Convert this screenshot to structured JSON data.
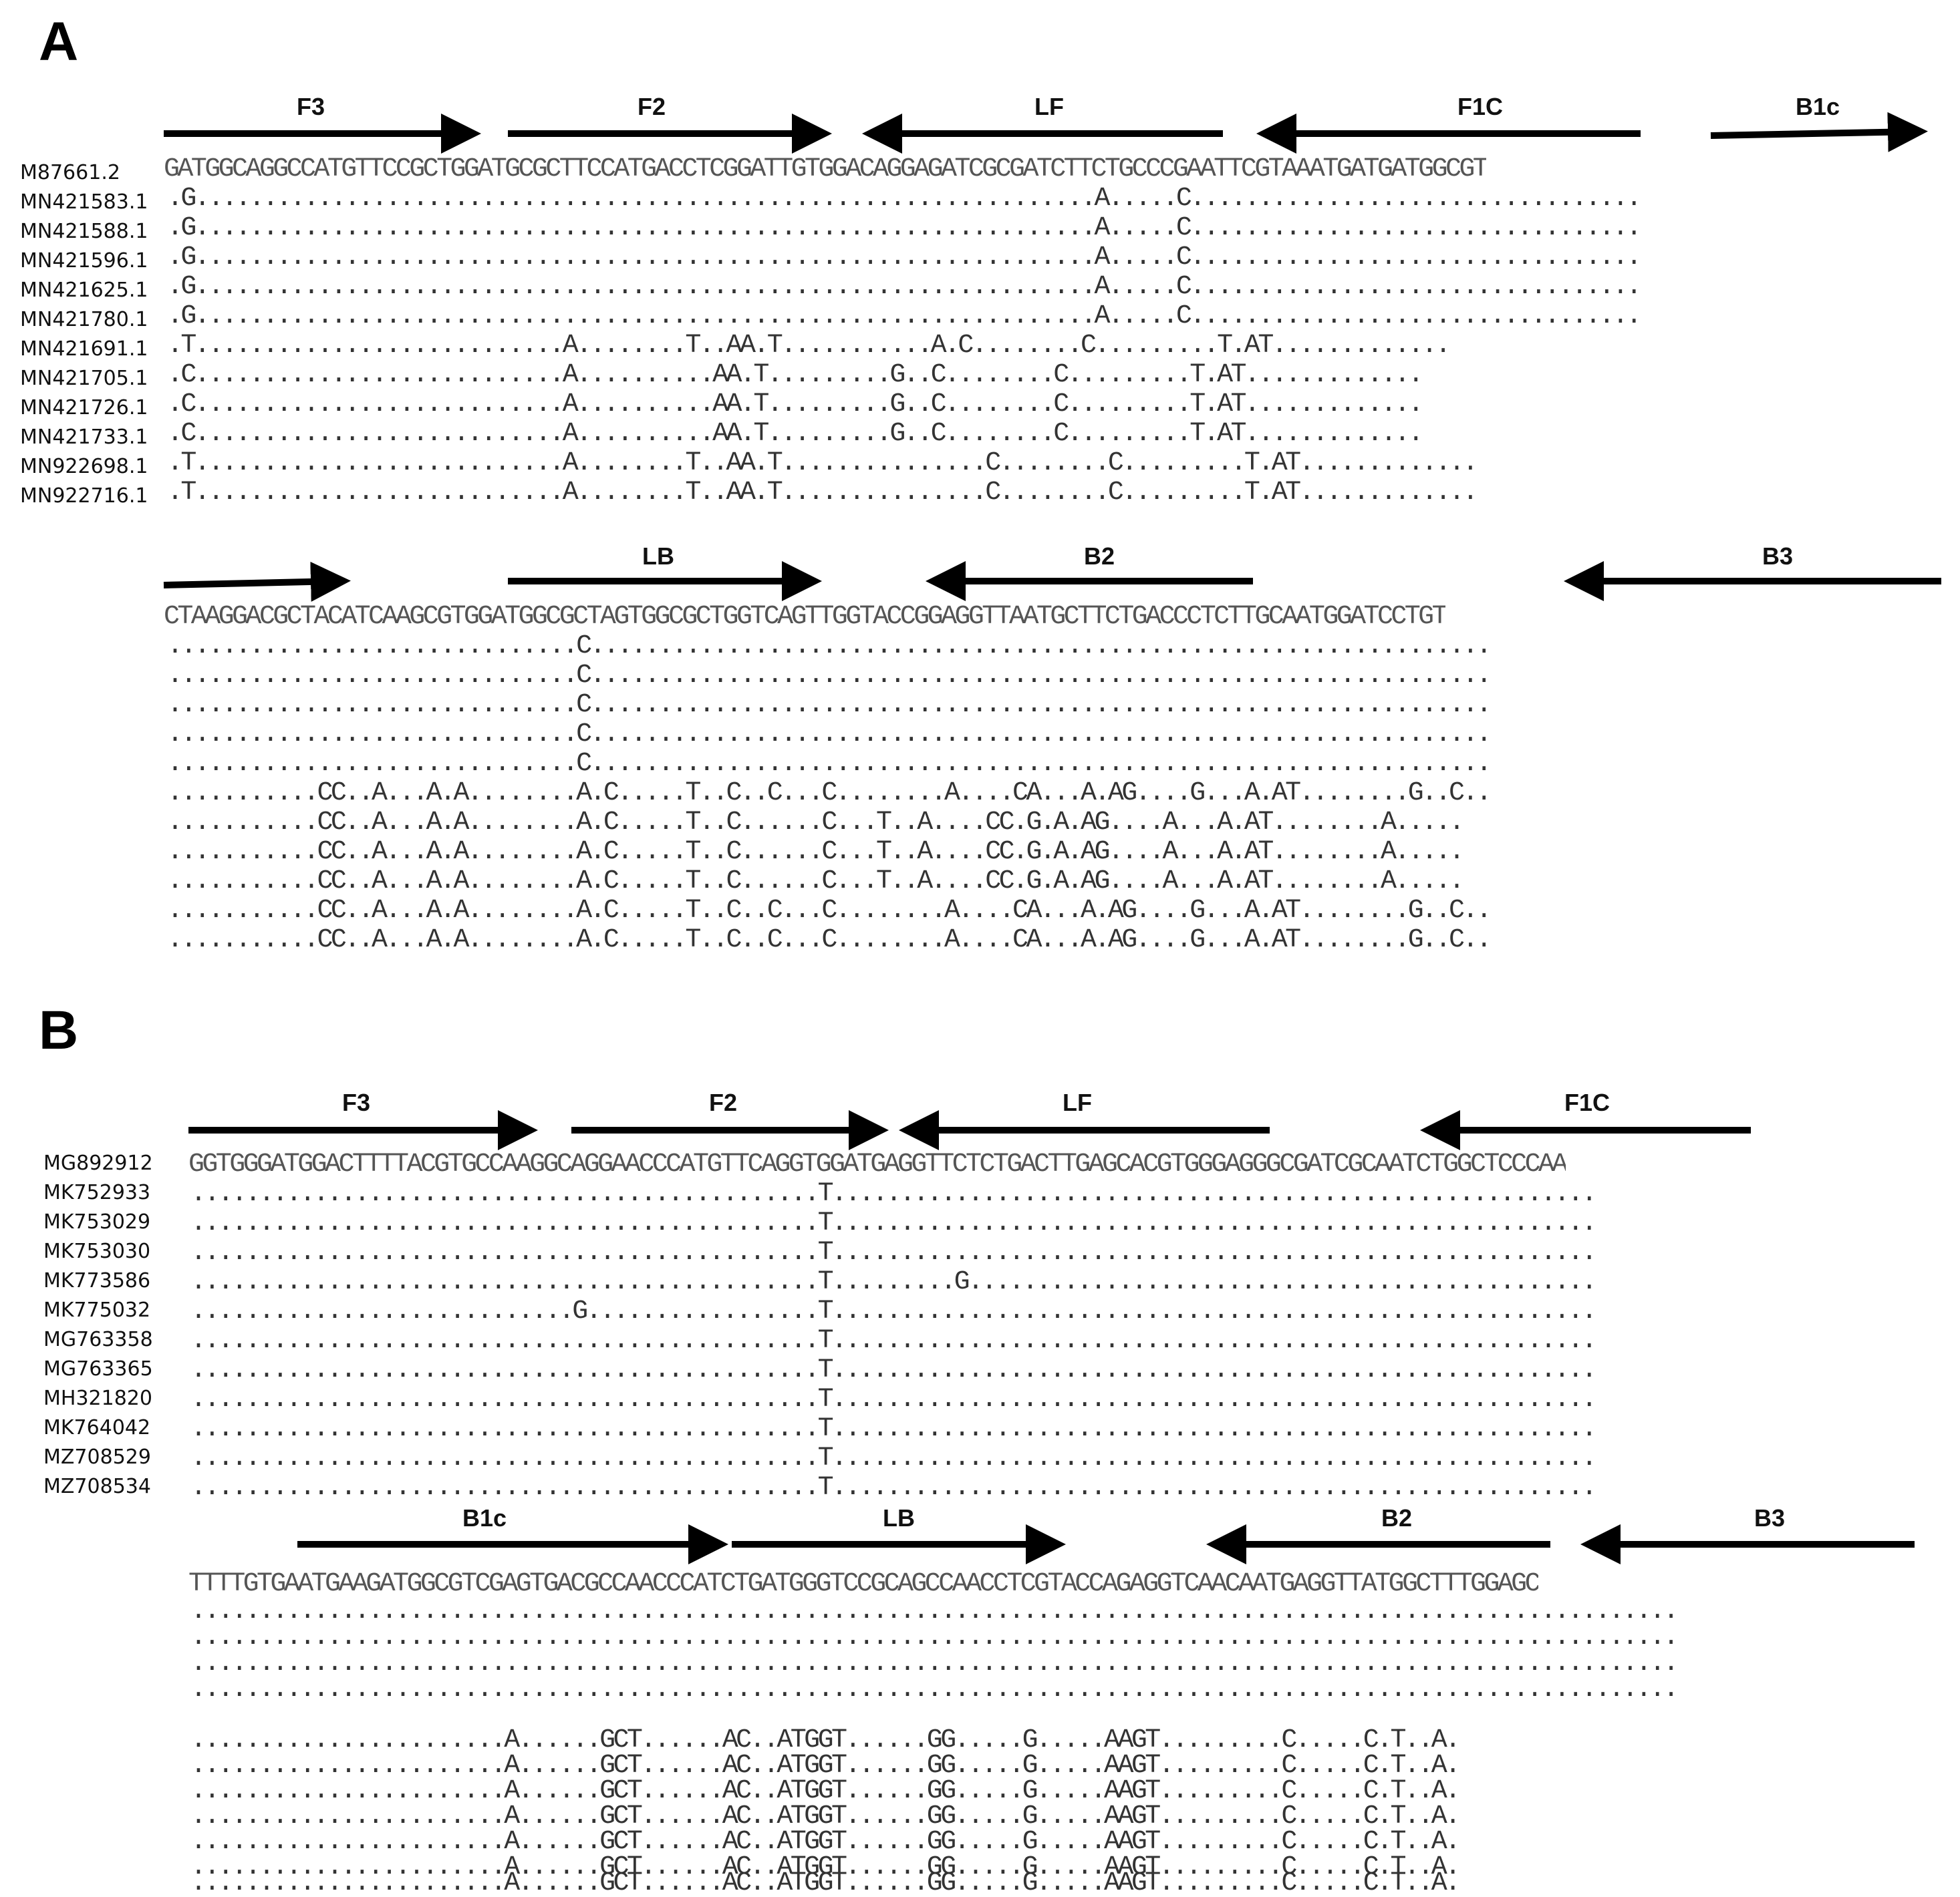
{
  "panel_a": {
    "letter": "A",
    "primer_labels": [
      "F3",
      "F2",
      "LF",
      "F1C",
      "B1c",
      "LB",
      "B2",
      "B3"
    ],
    "accessions": [
      "M87661.2",
      "MN421583.1",
      "MN421588.1",
      "MN421596.1",
      "MN421625.1",
      "MN421780.1",
      "MN421691.1",
      "MN421705.1",
      "MN421726.1",
      "MN421733.1",
      "MN922698.1",
      "MN922716.1"
    ],
    "ref_seq_1": "GATGGCAGGCCATGTTCCGCTGGATGCGCTTCCATGACCTCGGATTGTGGACAGGAGATCGCGATCTTCTGCCCGAATTCGTAAATGATGATGGCGT",
    "ref_seq_2": "CTAAGGACGCTACATCAAGCGTGGATGGCGCTAGTGGCGCTGGTCAGTTGGTACCGGAGGTTAATGCTTCTGACCCTCTTGCAATGGATCCTGT",
    "block1_rows": [
      ".G..................................................................A.....C.................................",
      ".G..................................................................A.....C.................................",
      ".G..................................................................A.....C.................................",
      ".G..................................................................A.....C.................................",
      ".G..................................................................A.....C.................................",
      ".T...........................A........T..AA.T...........A.C........C.........T.AT.............",
      ".C...........................A..........AA.T.........G..C........C.........T.AT.............",
      ".C...........................A..........AA.T.........G..C........C.........T.AT.............",
      ".C...........................A..........AA.T.........G..C........C.........T.AT.............",
      ".T...........................A........T..AA.T...............C........C.........T.AT.............",
      ".T...........................A........T..AA.T...............C........C.........T.AT............."
    ],
    "block2_rows": [
      "..............................C..................................................................",
      "..............................C..................................................................",
      "..............................C..................................................................",
      "..............................C..................................................................",
      "..............................C..................................................................",
      "...........CC..A...A.A........A.C.....T..C..C...C........A....CA...A.AG....G...A.AT........G..C..",
      "...........CC..A...A.A........A.C.....T..C......C...T..A....CC.G.A.AG....A...A.AT........A.....",
      "...........CC..A...A.A........A.C.....T..C......C...T..A....CC.G.A.AG....A...A.AT........A.....",
      "...........CC..A...A.A........A.C.....T..C......C...T..A....CC.G.A.AG....A...A.AT........A.....",
      "...........CC..A...A.A........A.C.....T..C..C...C........A....CA...A.AG....G...A.AT........G..C..",
      "...........CC..A...A.A........A.C.....T..C..C...C........A....CA...A.AG....G...A.AT........G..C.."
    ]
  },
  "panel_b": {
    "letter": "B",
    "primer_labels": [
      "F3",
      "F2",
      "LF",
      "F1C",
      "B1c",
      "LB",
      "B2",
      "B3"
    ],
    "accessions": [
      "MG892912",
      "MK752933",
      "MK753029",
      "MK753030",
      "MK773586",
      "MK775032",
      "MG763358",
      "MG763365",
      "MH321820",
      "MK764042",
      "MZ708529",
      "MZ708534"
    ],
    "ref_seq_1": "GGTGGGATGGACTTTTACGTGCCAAGGCAGGAACCCATGTTCAGGTGGATGAGGTTCTCTGACTTGAGCACGTGGGAGGGCGATCGCAATCTGGCTCCCAA",
    "ref_seq_2": "TTTTGTGAATGAAGATGGCGTCGAGTGACGCCAACCCATCTGATGGGTCCGCAGCCAACCTCGTACCAGAGGTCAACAATGAGGTTATGGCTTTGGAGC",
    "block1_rows": [
      "..............................................T........................................................",
      "..............................................T........................................................",
      "..............................................T........................................................",
      "..............................................T.........G..............................................",
      "............................G.................T........................................................",
      "..............................................T........................................................",
      "..............................................T........................................................",
      "..............................................T........................................................",
      "..............................................T........................................................",
      "..............................................T........................................................",
      "..............................................T........................................................"
    ],
    "block2_rows": [
      ".............................................................................................................",
      ".............................................................................................................",
      ".............................................................................................................",
      ".............................................................................................................",
      ".......................A......GCT......AC..ATGGT......GG.....G.....AAGT.........C.....C.T..A.",
      ".......................A......GCT......AC..ATGGT......GG.....G.....AAGT.........C.....C.T..A.",
      ".......................A......GCT......AC..ATGGT......GG.....G.....AAGT.........C.....C.T..A.",
      ".......................A......GCT......AC..ATGGT......GG.....G.....AAGT.........C.....C.T..A.",
      ".......................A......GCT......AC..ATGGT......GG.....G.....AAGT.........C.....C.T..A.",
      ".......................A......GCT......AC..ATGGT......GG.....G.....AAGT.........C.....C.T..A.",
      ".......................A......GCT......AC..ATGGT......GG.....G.....AAGT.........C.....C.T..A."
    ]
  }
}
